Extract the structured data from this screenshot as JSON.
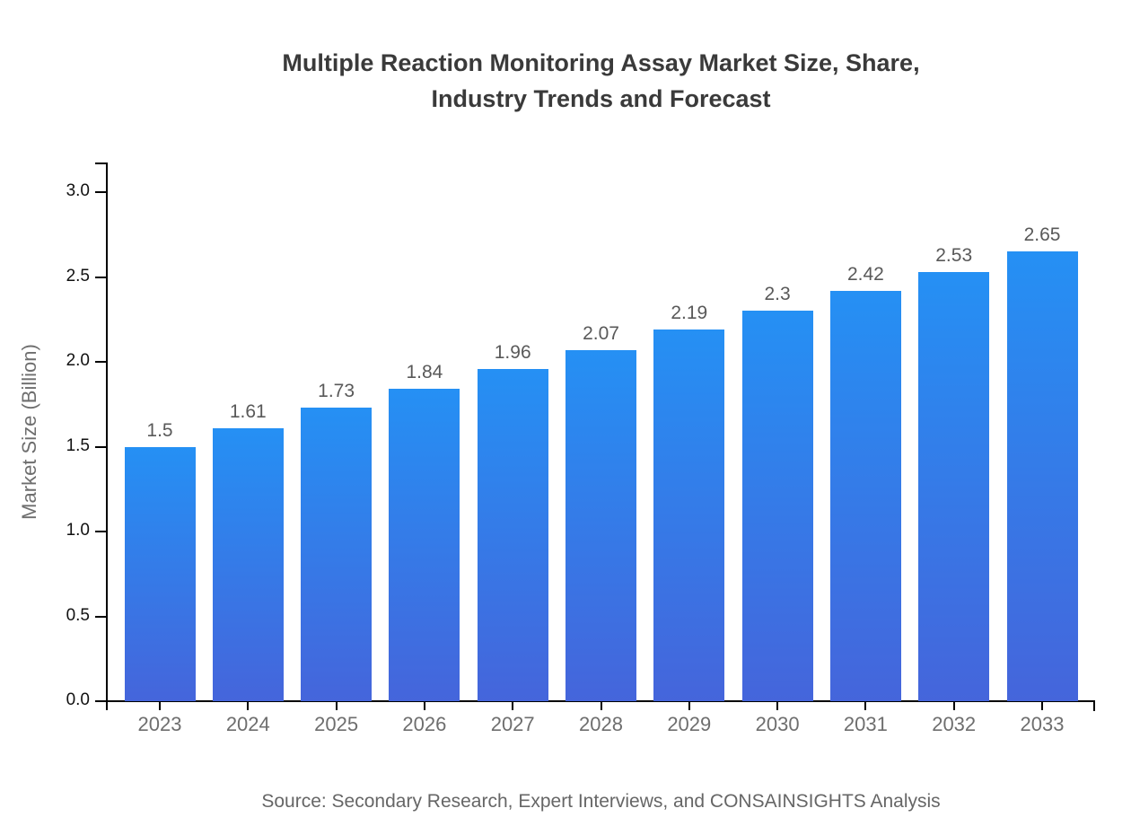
{
  "chart_data": {
    "type": "bar",
    "title_lines": [
      "Multiple Reaction Monitoring Assay Market Size, Share,",
      "Industry Trends and Forecast"
    ],
    "categories": [
      "2023",
      "2024",
      "2025",
      "2026",
      "2027",
      "2028",
      "2029",
      "2030",
      "2031",
      "2032",
      "2033"
    ],
    "values": [
      1.5,
      1.61,
      1.73,
      1.84,
      1.96,
      2.07,
      2.19,
      2.3,
      2.42,
      2.53,
      2.65
    ],
    "value_labels": [
      "1.5",
      "1.61",
      "1.73",
      "1.84",
      "1.96",
      "2.07",
      "2.19",
      "2.3",
      "2.42",
      "2.53",
      "2.65"
    ],
    "xlabel": "",
    "ylabel": "Market Size (Billion)",
    "yticks": {
      "values": [
        0,
        0.5,
        1,
        1.5,
        2,
        2.5,
        3
      ],
      "labels": [
        "0.0",
        "0.5",
        "1.0",
        "1.5",
        "2.0",
        "2.5",
        "3.0"
      ]
    },
    "ylim": [
      0,
      3.17
    ],
    "grid": false,
    "legend": "none",
    "bar_color_top": "#2590F4",
    "bar_color_bottom": "#4565DB",
    "source": "Source: Secondary Research, Expert Interviews, and CONSAINSIGHTS Analysis"
  },
  "colors": {
    "background": "#ffffff",
    "title": "#3a3a3a",
    "axis": "#000000",
    "ytick_label": "#111111",
    "xtick_label": "#6e6e6e",
    "value_label": "#595959",
    "ylabel": "#6e6e6e",
    "source": "#666666"
  }
}
